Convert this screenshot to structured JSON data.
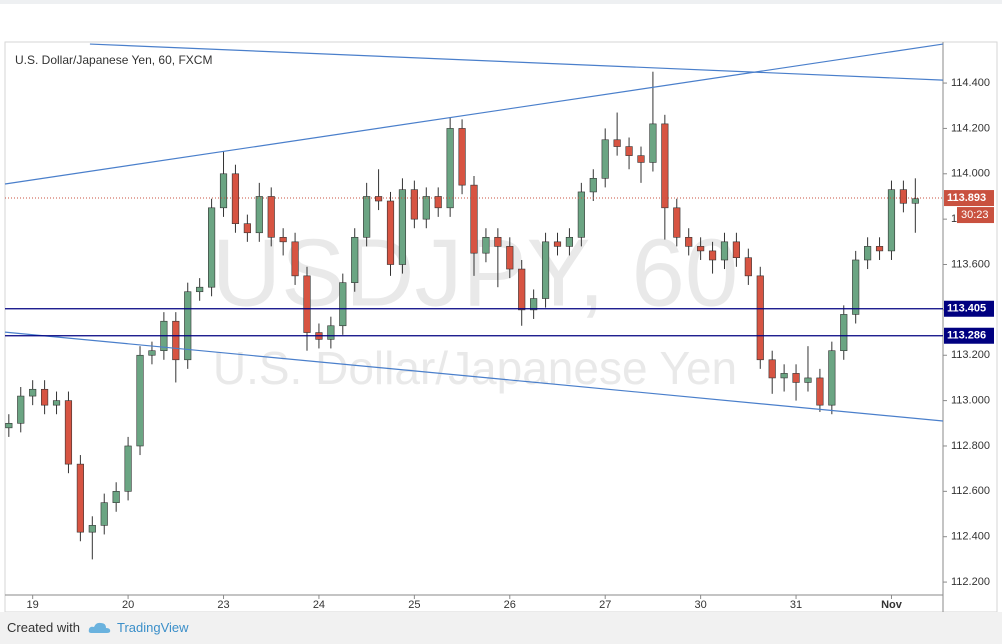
{
  "chart_data": {
    "type": "candlestick",
    "title": "U.S. Dollar/Japanese Yen, 60, FXCM",
    "watermark": "USDJPY, 60",
    "watermark_subtitle": "U.S. Dollar/Japanese Yen",
    "up_color": "#6ba583",
    "down_color": "#d75442",
    "x": [
      -0.25,
      -0.125,
      0,
      0.125,
      0.25,
      0.375,
      0.5,
      0.625,
      0.75,
      0.875,
      1,
      1.125,
      1.25,
      1.375,
      1.5,
      1.625,
      1.75,
      1.875,
      2,
      2.125,
      2.25,
      2.375,
      2.5,
      2.625,
      2.75,
      2.875,
      3,
      3.125,
      3.25,
      3.375,
      3.5,
      3.625,
      3.75,
      3.875,
      4,
      4.125,
      4.25,
      4.375,
      4.5,
      4.625,
      4.75,
      4.875,
      5,
      5.125,
      5.25,
      5.375,
      5.5,
      5.625,
      5.75,
      5.875,
      6,
      6.125,
      6.25,
      6.375,
      6.5,
      6.625,
      6.75,
      6.875,
      7,
      7.125,
      7.25,
      7.375,
      7.5,
      7.625,
      7.75,
      7.875,
      8,
      8.125,
      8.25,
      8.375,
      8.5,
      8.625,
      8.75,
      8.875,
      9,
      9.125,
      9.25
    ],
    "open": [
      112.88,
      112.9,
      113.02,
      113.05,
      112.98,
      113.0,
      112.72,
      112.42,
      112.45,
      112.55,
      112.6,
      112.8,
      113.2,
      113.22,
      113.35,
      113.18,
      113.48,
      113.5,
      113.85,
      114.0,
      113.78,
      113.74,
      113.9,
      113.72,
      113.7,
      113.55,
      113.3,
      113.27,
      113.33,
      113.52,
      113.72,
      113.9,
      113.88,
      113.6,
      113.93,
      113.8,
      113.9,
      113.85,
      114.2,
      113.95,
      113.65,
      113.72,
      113.68,
      113.58,
      113.4,
      113.45,
      113.7,
      113.68,
      113.72,
      113.92,
      113.98,
      114.15,
      114.12,
      114.08,
      114.05,
      114.22,
      113.85,
      113.72,
      113.68,
      113.66,
      113.62,
      113.7,
      113.63,
      113.55,
      113.18,
      113.1,
      113.12,
      113.08,
      113.1,
      112.98,
      113.22,
      113.38,
      113.62,
      113.68,
      113.66,
      113.93,
      113.87
    ],
    "high": [
      112.94,
      113.06,
      113.09,
      113.09,
      113.04,
      113.04,
      112.76,
      112.49,
      112.59,
      112.64,
      112.84,
      113.24,
      113.26,
      113.39,
      113.39,
      113.52,
      113.54,
      113.89,
      114.1,
      114.04,
      113.82,
      113.96,
      113.94,
      113.76,
      113.74,
      113.59,
      113.34,
      113.37,
      113.56,
      113.76,
      113.96,
      114.02,
      113.92,
      113.98,
      113.97,
      113.94,
      113.94,
      114.25,
      114.24,
      113.99,
      113.76,
      113.76,
      113.72,
      113.62,
      113.49,
      113.74,
      113.74,
      113.76,
      113.96,
      114.02,
      114.2,
      114.27,
      114.16,
      114.12,
      114.45,
      114.26,
      113.89,
      113.76,
      113.72,
      113.7,
      113.74,
      113.74,
      113.67,
      113.59,
      113.22,
      113.16,
      113.16,
      113.24,
      113.14,
      113.26,
      113.42,
      113.66,
      113.72,
      113.72,
      113.97,
      113.97,
      113.98
    ],
    "low": [
      112.84,
      112.86,
      112.98,
      112.94,
      112.94,
      112.68,
      112.38,
      112.3,
      112.41,
      112.51,
      112.56,
      112.76,
      113.16,
      113.18,
      113.08,
      113.14,
      113.44,
      113.46,
      113.81,
      113.74,
      113.7,
      113.7,
      113.68,
      113.64,
      113.51,
      113.22,
      113.23,
      113.23,
      113.29,
      113.48,
      113.68,
      113.84,
      113.55,
      113.56,
      113.76,
      113.76,
      113.81,
      113.81,
      113.91,
      113.55,
      113.61,
      113.5,
      113.54,
      113.33,
      113.36,
      113.41,
      113.64,
      113.64,
      113.68,
      113.88,
      113.94,
      114.08,
      114.02,
      113.96,
      114.01,
      113.71,
      113.68,
      113.64,
      113.62,
      113.56,
      113.58,
      113.59,
      113.51,
      113.14,
      113.03,
      113.04,
      113.0,
      113.04,
      112.95,
      112.94,
      113.18,
      113.34,
      113.58,
      113.62,
      113.62,
      113.83,
      113.74
    ],
    "close": [
      112.9,
      113.02,
      113.05,
      112.98,
      113.0,
      112.72,
      112.42,
      112.45,
      112.55,
      112.6,
      112.8,
      113.2,
      113.22,
      113.35,
      113.18,
      113.48,
      113.5,
      113.85,
      114.0,
      113.78,
      113.74,
      113.9,
      113.72,
      113.7,
      113.55,
      113.3,
      113.27,
      113.33,
      113.52,
      113.72,
      113.9,
      113.88,
      113.6,
      113.93,
      113.8,
      113.9,
      113.85,
      114.2,
      113.95,
      113.65,
      113.72,
      113.68,
      113.58,
      113.4,
      113.45,
      113.7,
      113.68,
      113.72,
      113.92,
      113.98,
      114.15,
      114.12,
      114.08,
      114.05,
      114.22,
      113.85,
      113.72,
      113.68,
      113.66,
      113.62,
      113.7,
      113.63,
      113.55,
      113.18,
      113.1,
      113.12,
      113.08,
      113.1,
      112.98,
      113.22,
      113.38,
      113.62,
      113.68,
      113.66,
      113.93,
      113.87,
      113.89
    ],
    "xlim": [
      -0.29,
      9.54
    ],
    "ylim": [
      112.143,
      114.581
    ],
    "xticks": [
      {
        "value": 0,
        "label": "19"
      },
      {
        "value": 1,
        "label": "20"
      },
      {
        "value": 2,
        "label": "23"
      },
      {
        "value": 3,
        "label": "24"
      },
      {
        "value": 4,
        "label": "25"
      },
      {
        "value": 5,
        "label": "26"
      },
      {
        "value": 6,
        "label": "27"
      },
      {
        "value": 7,
        "label": "30"
      },
      {
        "value": 8,
        "label": "31"
      },
      {
        "value": 9,
        "label": "Nov"
      }
    ],
    "yticks": [
      {
        "value": 114.4,
        "label": "114.400"
      },
      {
        "value": 114.2,
        "label": "114.200"
      },
      {
        "value": 114,
        "label": "114.000"
      },
      {
        "value": 113.8,
        "label": "113.800"
      },
      {
        "value": 113.6,
        "label": "113.600"
      },
      {
        "value": 113.4,
        "label": "113.400"
      },
      {
        "value": 113.2,
        "label": "113.200"
      },
      {
        "value": 113,
        "label": "113.000"
      },
      {
        "value": 112.8,
        "label": "112.800"
      },
      {
        "value": 112.6,
        "label": "112.600"
      },
      {
        "value": 112.4,
        "label": "112.400"
      },
      {
        "value": 112.2,
        "label": "112.200"
      }
    ],
    "levels": [
      {
        "value": 113.405,
        "color": "#000080"
      },
      {
        "value": 113.286,
        "color": "#000080"
      }
    ],
    "trend_lines": [
      {
        "x": [
          -0.29,
          9.54
        ],
        "y": [
          113.955,
          114.572
        ],
        "color": "#4a7fcb"
      },
      {
        "x": [
          0.6,
          9.54
        ],
        "y": [
          114.572,
          114.413
        ],
        "color": "#4a7fcb"
      },
      {
        "x": [
          -0.29,
          9.54
        ],
        "y": [
          113.302,
          112.91
        ],
        "color": "#4a7fcb"
      }
    ],
    "last_price": 113.893,
    "last_price_color": "#c9513f",
    "countdown": "30:23"
  },
  "footer": {
    "created_with": "Created with",
    "brand": "TradingView"
  }
}
